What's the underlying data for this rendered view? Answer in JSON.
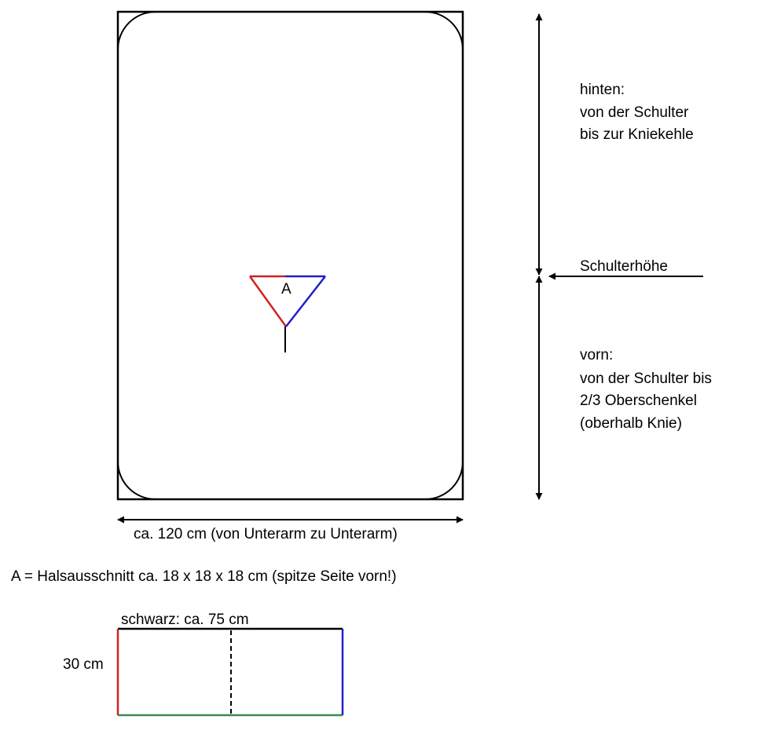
{
  "labels": {
    "back_title": "hinten:",
    "back_line1": "von der Schulter",
    "back_line2": "bis zur Kniekehle",
    "shoulder": "Schulterhöhe",
    "front_title": "vorn:",
    "front_line1": "von der Schulter bis",
    "front_line2": "2/3 Oberschenkel",
    "front_line3": "(oberhalb Knie)",
    "neck_marker": "A",
    "width": "ca. 120 cm (von Unterarm zu Unterarm)",
    "neck_legend": "A = Halsausschnitt ca. 18 x 18 x 18 cm (spitze Seite vorn!)",
    "strip_length": "schwarz: ca. 75 cm",
    "strip_height": "30 cm"
  },
  "colors": {
    "outline": "#000000",
    "red": "#d32020",
    "blue": "#2020c8",
    "green": "#3a8a55"
  }
}
